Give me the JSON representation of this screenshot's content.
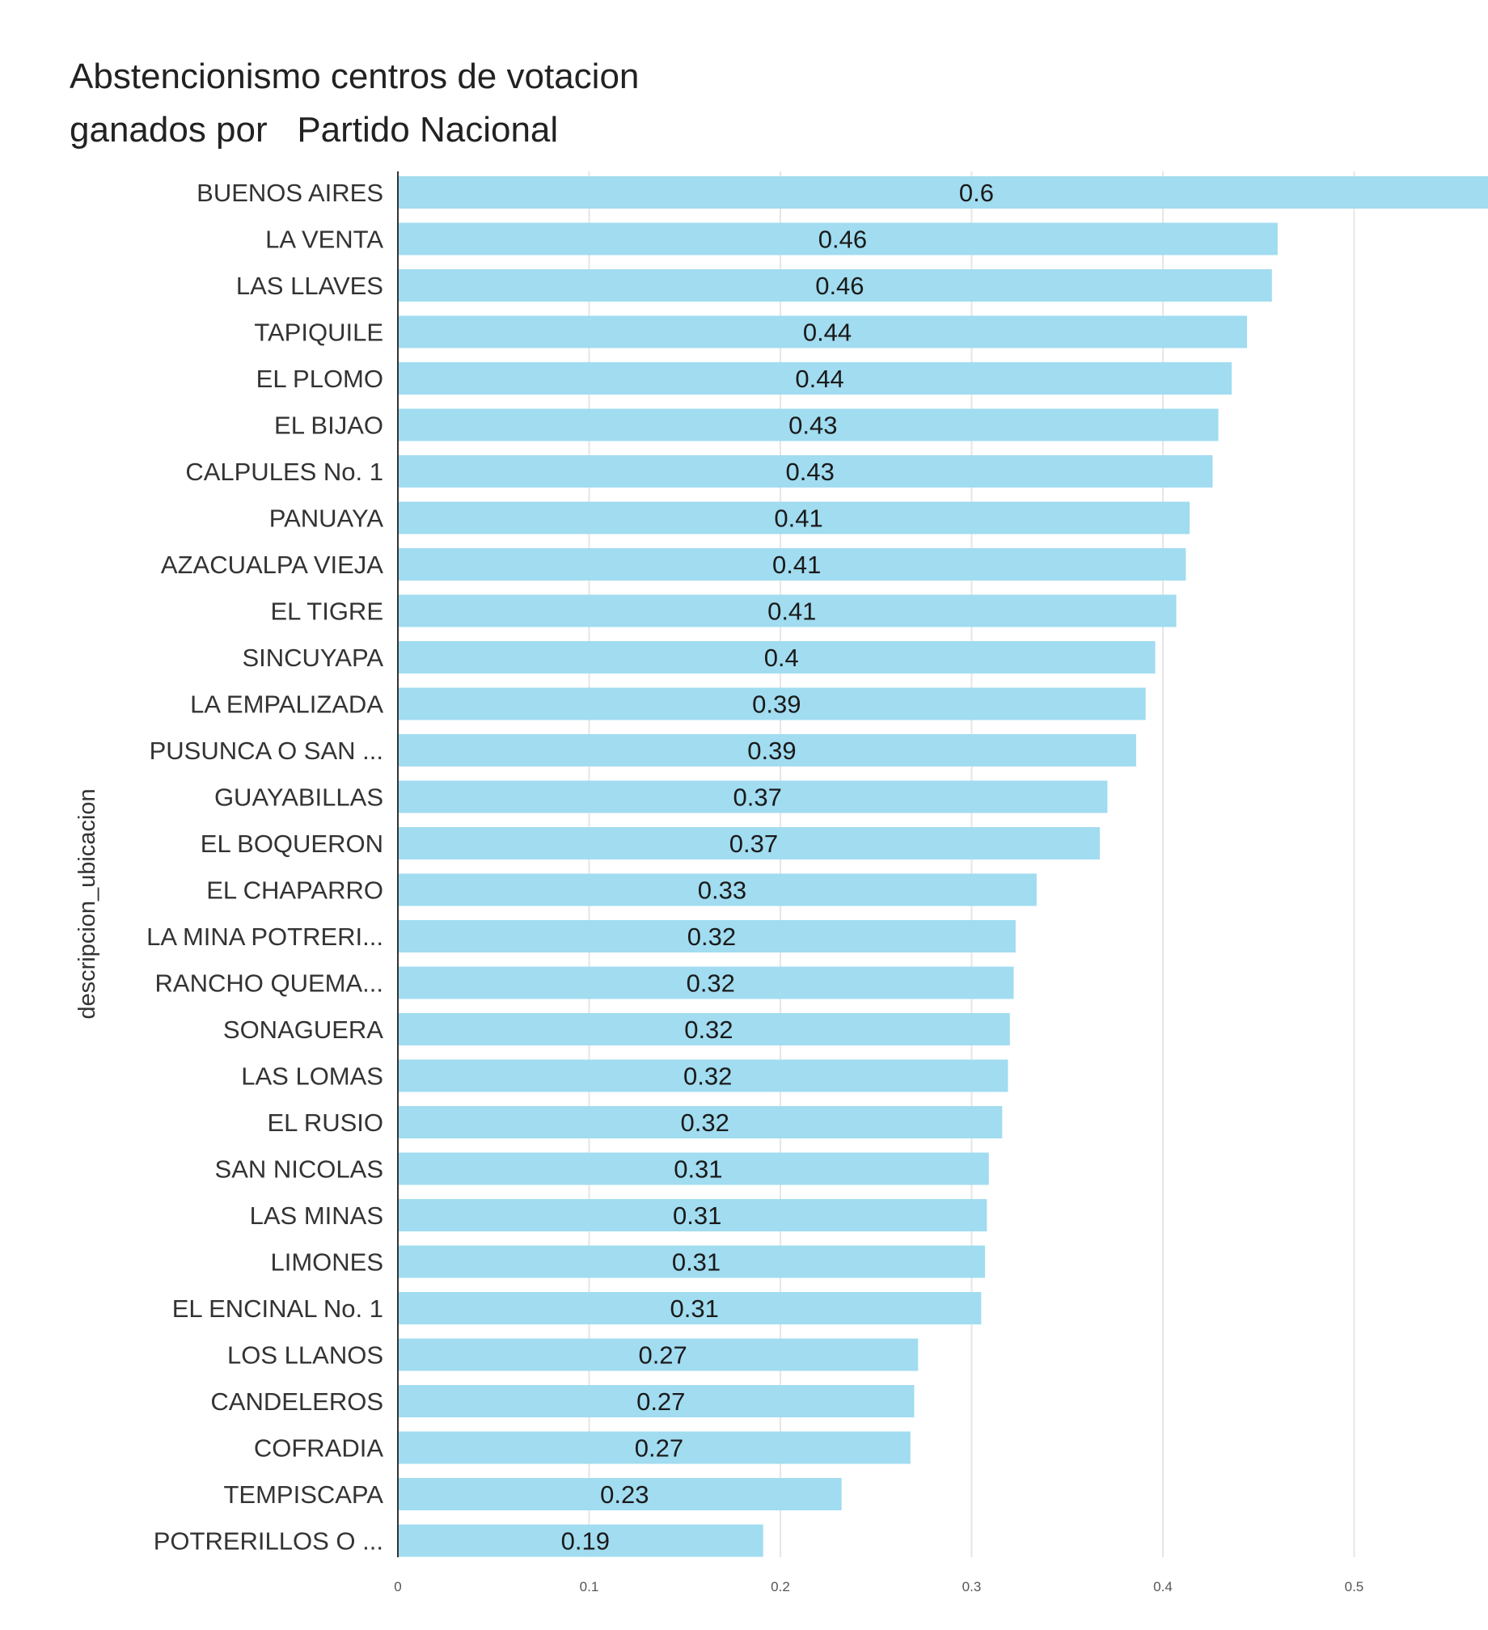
{
  "chart_data": {
    "type": "bar",
    "orientation": "horizontal",
    "title": [
      "Abstencionismo centros de votacion",
      "ganados por   Partido Nacional"
    ],
    "xlabel": "",
    "ylabel": "descripcion_ubicacion",
    "xlim": [
      0,
      0.57
    ],
    "xticks": [
      "0",
      "0.1",
      "0.2",
      "0.3",
      "0.4",
      "0.5"
    ],
    "grid": true,
    "bar_color": "#a1dcf0",
    "categories": [
      "BUENOS AIRES",
      "LA VENTA",
      "LAS LLAVES",
      "TAPIQUILE",
      "EL PLOMO",
      "EL BIJAO",
      "CALPULES No. 1",
      "PANUAYA",
      "AZACUALPA VIEJA",
      "EL TIGRE",
      "SINCUYAPA",
      "LA EMPALIZADA",
      "PUSUNCA O SAN ...",
      "GUAYABILLAS",
      "EL BOQUERON",
      "EL CHAPARRO",
      "LA MINA POTRERI...",
      "RANCHO QUEMA...",
      "SONAGUERA",
      "LAS LOMAS",
      "EL RUSIO",
      "SAN NICOLAS",
      "LAS MINAS",
      "LIMONES",
      "EL ENCINAL No. 1",
      "LOS LLANOS",
      "CANDELEROS",
      "COFRADIA",
      "TEMPISCAPA",
      "POTRERILLOS O ..."
    ],
    "values": [
      0.6,
      0.46,
      0.457,
      0.444,
      0.436,
      0.429,
      0.426,
      0.414,
      0.412,
      0.407,
      0.396,
      0.391,
      0.386,
      0.371,
      0.367,
      0.334,
      0.323,
      0.322,
      0.32,
      0.319,
      0.316,
      0.309,
      0.308,
      0.307,
      0.305,
      0.272,
      0.27,
      0.268,
      0.232,
      0.191
    ],
    "value_labels": [
      "0.6",
      "0.46",
      "0.46",
      "0.44",
      "0.44",
      "0.43",
      "0.43",
      "0.41",
      "0.41",
      "0.41",
      "0.4",
      "0.39",
      "0.39",
      "0.37",
      "0.37",
      "0.33",
      "0.32",
      "0.32",
      "0.32",
      "0.32",
      "0.32",
      "0.31",
      "0.31",
      "0.31",
      "0.31",
      "0.27",
      "0.27",
      "0.27",
      "0.23",
      "0.19"
    ]
  }
}
